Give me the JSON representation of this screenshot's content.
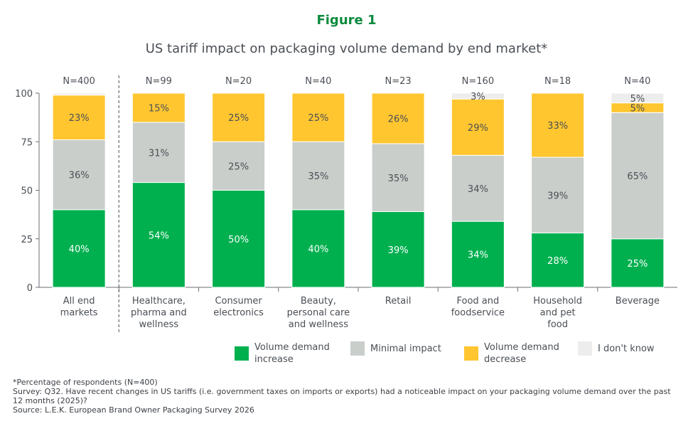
{
  "figure_label": "Figure 1",
  "colors": {
    "increase": "#00b04f",
    "minimal": "#c9ceca",
    "decrease": "#ffc630",
    "dont_know": "#ededed",
    "figure_label": "#0b8a3e"
  },
  "legend": [
    {
      "key": "increase",
      "label": "Volume demand increase"
    },
    {
      "key": "minimal",
      "label": "Minimal impact"
    },
    {
      "key": "decrease",
      "label": "Volume demand decrease"
    },
    {
      "key": "dont_know",
      "label": "I don't know"
    }
  ],
  "footnotes": {
    "note": "*Percentage of respondents (N=400)",
    "survey": "Survey: Q32. Have recent changes in US tariffs (i.e. government taxes on imports or exports) had a noticeable impact on your packaging volume demand over the past 12 months (2025)?",
    "source": "Source: L.E.K. European Brand Owner Packaging Survey 2026"
  },
  "chart_data": {
    "type": "bar",
    "stacked": true,
    "title": "US tariff impact on packaging volume demand by end market*",
    "ylim": [
      0,
      100
    ],
    "yticks": [
      0,
      25,
      50,
      75,
      100
    ],
    "grid": false,
    "legend_position": "bottom",
    "categories": [
      [
        "All end",
        "markets"
      ],
      [
        "Healthcare,",
        "pharma and",
        "wellness"
      ],
      [
        "Consumer",
        "electronics"
      ],
      [
        "Beauty,",
        "personal care",
        "and wellness"
      ],
      [
        "Retail"
      ],
      [
        "Food and",
        "foodservice"
      ],
      [
        "Household",
        "and pet",
        "food"
      ],
      [
        "Beverage"
      ]
    ],
    "sample_sizes": [
      "N=400",
      "N=99",
      "N=20",
      "N=40",
      "N=23",
      "N=160",
      "N=18",
      "N=40"
    ],
    "series": [
      {
        "key": "increase",
        "name": "Volume demand increase",
        "values": [
          40,
          54,
          50,
          40,
          39,
          34,
          28,
          25
        ],
        "labels": [
          "40%",
          "54%",
          "50%",
          "40%",
          "39%",
          "34%",
          "28%",
          "25%"
        ]
      },
      {
        "key": "minimal",
        "name": "Minimal impact",
        "values": [
          36,
          31,
          25,
          35,
          35,
          34,
          39,
          65
        ],
        "labels": [
          "36%",
          "31%",
          "25%",
          "35%",
          "35%",
          "34%",
          "39%",
          "65%"
        ]
      },
      {
        "key": "decrease",
        "name": "Volume demand decrease",
        "values": [
          23,
          15,
          25,
          25,
          26,
          29,
          33,
          5
        ],
        "labels": [
          "23%",
          "15%",
          "25%",
          "25%",
          "26%",
          "29%",
          "33%",
          "5%"
        ]
      },
      {
        "key": "dont_know",
        "name": "I don't know",
        "values": [
          1,
          0,
          0,
          0,
          0,
          3,
          0,
          5
        ],
        "labels": [
          "",
          "",
          "",
          "",
          "",
          "3%",
          "",
          "5%"
        ]
      }
    ]
  }
}
